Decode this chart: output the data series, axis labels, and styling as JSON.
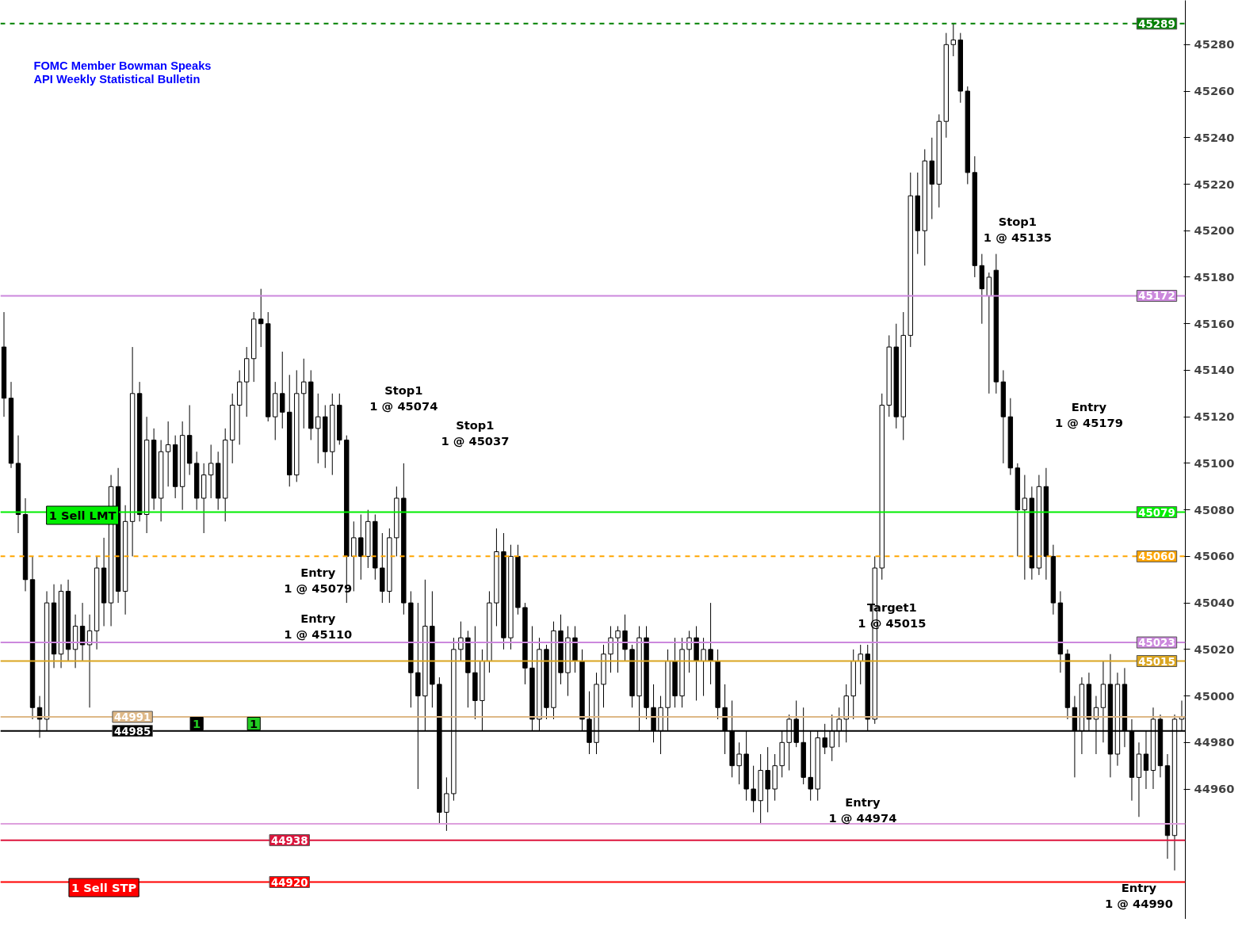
{
  "chart_data": {
    "type": "candlestick",
    "categories": [
      null,
      null,
      null,
      null,
      null,
      null,
      null,
      null,
      null,
      null,
      null,
      null,
      null,
      null,
      null,
      null,
      null,
      null,
      null,
      null,
      null,
      null,
      null,
      null,
      null,
      null,
      null,
      null,
      null,
      null,
      null,
      null,
      null,
      null,
      null,
      null,
      null,
      null,
      null,
      null,
      null,
      null,
      null,
      null,
      null,
      null,
      null,
      null,
      null,
      null,
      null,
      null,
      null,
      null,
      null,
      null,
      null,
      null,
      null,
      null,
      null,
      null,
      null,
      null,
      null,
      null,
      null,
      null,
      null,
      null,
      null,
      null,
      null,
      null,
      null,
      null,
      null,
      null,
      null,
      null,
      null,
      null,
      null,
      null,
      null,
      null,
      null,
      null,
      null,
      null,
      null,
      null,
      null,
      null,
      null,
      null,
      null,
      null,
      null,
      null,
      null,
      null,
      null,
      null,
      null,
      null,
      null,
      null,
      null,
      null,
      null,
      null,
      null,
      null,
      null,
      null,
      null,
      null,
      null,
      null,
      null,
      null,
      null,
      null,
      null,
      null,
      null,
      null,
      null,
      null,
      null,
      null,
      null,
      null,
      null,
      null,
      null,
      null,
      null,
      null,
      null,
      null,
      null,
      null,
      null,
      null,
      null,
      null,
      null,
      null,
      null,
      null,
      null,
      null,
      null,
      null,
      null,
      null,
      null,
      null,
      null,
      null,
      null,
      null,
      null,
      null
    ],
    "ohlc": [
      [
        45150,
        45165,
        45120,
        45128
      ],
      [
        45128,
        45135,
        45098,
        45100
      ],
      [
        45100,
        45112,
        45070,
        45078
      ],
      [
        45078,
        45085,
        45045,
        45050
      ],
      [
        45050,
        45060,
        44990,
        44995
      ],
      [
        44995,
        45000,
        44982,
        44990
      ],
      [
        44990,
        45045,
        44985,
        45040
      ],
      [
        45040,
        45048,
        45012,
        45018
      ],
      [
        45018,
        45048,
        45012,
        45045
      ],
      [
        45045,
        45050,
        45015,
        45020
      ],
      [
        45020,
        45035,
        45012,
        45030
      ],
      [
        45030,
        45040,
        45015,
        45022
      ],
      [
        45022,
        45035,
        44995,
        45028
      ],
      [
        45028,
        45060,
        45020,
        45055
      ],
      [
        45055,
        45068,
        45030,
        45040
      ],
      [
        45040,
        45095,
        45030,
        45090
      ],
      [
        45090,
        45098,
        45040,
        45045
      ],
      [
        45045,
        45082,
        45035,
        45075
      ],
      [
        45075,
        45150,
        45060,
        45130
      ],
      [
        45130,
        45135,
        45075,
        45078
      ],
      [
        45078,
        45120,
        45070,
        45110
      ],
      [
        45110,
        45115,
        45080,
        45085
      ],
      [
        45085,
        45110,
        45075,
        45105
      ],
      [
        45105,
        45118,
        45090,
        45108
      ],
      [
        45108,
        45112,
        45085,
        45090
      ],
      [
        45090,
        45118,
        45080,
        45112
      ],
      [
        45112,
        45125,
        45095,
        45100
      ],
      [
        45100,
        45105,
        45080,
        45085
      ],
      [
        45085,
        45100,
        45070,
        45095
      ],
      [
        45095,
        45108,
        45085,
        45100
      ],
      [
        45100,
        45105,
        45080,
        45085
      ],
      [
        45085,
        45115,
        45075,
        45110
      ],
      [
        45110,
        45130,
        45100,
        45125
      ],
      [
        45125,
        45140,
        45108,
        45135
      ],
      [
        45135,
        45150,
        45120,
        45145
      ],
      [
        45145,
        45165,
        45135,
        45162
      ],
      [
        45162,
        45175,
        45150,
        45160
      ],
      [
        45160,
        45165,
        45118,
        45120
      ],
      [
        45120,
        45135,
        45110,
        45130
      ],
      [
        45130,
        45148,
        45115,
        45122
      ],
      [
        45122,
        45138,
        45090,
        45095
      ],
      [
        45095,
        45140,
        45092,
        45130
      ],
      [
        45130,
        45145,
        45115,
        45135
      ],
      [
        45135,
        45140,
        45110,
        45115
      ],
      [
        45115,
        45130,
        45100,
        45120
      ],
      [
        45120,
        45125,
        45098,
        45105
      ],
      [
        45105,
        45130,
        45095,
        45125
      ],
      [
        45125,
        45130,
        45108,
        45110
      ],
      [
        45110,
        45112,
        45040,
        45060
      ],
      [
        45060,
        45075,
        45045,
        45068
      ],
      [
        45068,
        45078,
        45050,
        45060
      ],
      [
        45060,
        45080,
        45055,
        45075
      ],
      [
        45075,
        45078,
        45050,
        45055
      ],
      [
        45055,
        45070,
        45040,
        45045
      ],
      [
        45045,
        45072,
        45040,
        45068
      ],
      [
        45068,
        45090,
        45060,
        45085
      ],
      [
        45085,
        45100,
        45035,
        45040
      ],
      [
        45040,
        45045,
        44995,
        45010
      ],
      [
        45010,
        45040,
        44960,
        45000
      ],
      [
        45000,
        45050,
        44985,
        45030
      ],
      [
        45030,
        45045,
        44995,
        45005
      ],
      [
        45005,
        45008,
        44945,
        44950
      ],
      [
        44950,
        44965,
        44942,
        44958
      ],
      [
        44958,
        45025,
        44955,
        45020
      ],
      [
        45020,
        45032,
        45015,
        45025
      ],
      [
        45025,
        45028,
        44995,
        45010
      ],
      [
        45010,
        45030,
        44990,
        44998
      ],
      [
        44998,
        45020,
        44985,
        45015
      ],
      [
        45015,
        45045,
        45010,
        45040
      ],
      [
        45040,
        45072,
        45030,
        45062
      ],
      [
        45062,
        45070,
        45020,
        45025
      ],
      [
        45025,
        45065,
        45020,
        45060
      ],
      [
        45060,
        45065,
        45035,
        45038
      ],
      [
        45038,
        45040,
        45005,
        45012
      ],
      [
        45012,
        45030,
        44985,
        44990
      ],
      [
        44990,
        45025,
        44985,
        45020
      ],
      [
        45020,
        45022,
        44990,
        44995
      ],
      [
        44995,
        45032,
        44990,
        45028
      ],
      [
        45028,
        45035,
        45005,
        45010
      ],
      [
        45010,
        45030,
        45000,
        45025
      ],
      [
        45025,
        45030,
        45010,
        45015
      ],
      [
        45015,
        45020,
        44985,
        44990
      ],
      [
        44990,
        45002,
        44975,
        44980
      ],
      [
        44980,
        45010,
        44975,
        45005
      ],
      [
        45005,
        45022,
        44995,
        45018
      ],
      [
        45018,
        45030,
        45010,
        45025
      ],
      [
        45025,
        45030,
        45010,
        45028
      ],
      [
        45028,
        45035,
        45015,
        45020
      ],
      [
        45020,
        45022,
        44995,
        45000
      ],
      [
        45000,
        45030,
        44985,
        45025
      ],
      [
        45025,
        45030,
        44990,
        44995
      ],
      [
        44995,
        45005,
        44980,
        44985
      ],
      [
        44985,
        45000,
        44975,
        44995
      ],
      [
        44995,
        45020,
        44985,
        45015
      ],
      [
        45015,
        45025,
        44995,
        45000
      ],
      [
        45000,
        45025,
        44995,
        45020
      ],
      [
        45020,
        45028,
        45010,
        45025
      ],
      [
        45025,
        45030,
        44998,
        45015
      ],
      [
        45015,
        45025,
        45000,
        45020
      ],
      [
        45020,
        45040,
        45005,
        45015
      ],
      [
        45015,
        45020,
        44990,
        44995
      ],
      [
        44995,
        45005,
        44975,
        44985
      ],
      [
        44985,
        44998,
        44965,
        44970
      ],
      [
        44970,
        44980,
        44962,
        44975
      ],
      [
        44975,
        44985,
        44955,
        44960
      ],
      [
        44960,
        44970,
        44950,
        44955
      ],
      [
        44955,
        44975,
        44945,
        44968
      ],
      [
        44968,
        44978,
        44950,
        44960
      ],
      [
        44960,
        44975,
        44955,
        44970
      ],
      [
        44970,
        44985,
        44965,
        44980
      ],
      [
        44980,
        44992,
        44968,
        44990
      ],
      [
        44990,
        44998,
        44978,
        44980
      ],
      [
        44980,
        44995,
        44962,
        44965
      ],
      [
        44965,
        44985,
        44955,
        44960
      ],
      [
        44960,
        44985,
        44955,
        44982
      ],
      [
        44982,
        44988,
        44975,
        44978
      ],
      [
        44978,
        44992,
        44972,
        44985
      ],
      [
        44985,
        44995,
        44978,
        44990
      ],
      [
        44990,
        45005,
        44980,
        45000
      ],
      [
        45000,
        45020,
        44990,
        45015
      ],
      [
        45015,
        45022,
        45005,
        45018
      ],
      [
        45018,
        45022,
        44985,
        44990
      ],
      [
        44990,
        45060,
        44988,
        45055
      ],
      [
        45055,
        45130,
        45050,
        45125
      ],
      [
        45125,
        45155,
        45120,
        45150
      ],
      [
        45150,
        45160,
        45115,
        45120
      ],
      [
        45120,
        45165,
        45110,
        45155
      ],
      [
        45155,
        45225,
        45150,
        45215
      ],
      [
        45215,
        45225,
        45190,
        45200
      ],
      [
        45200,
        45235,
        45185,
        45230
      ],
      [
        45230,
        45240,
        45205,
        45220
      ],
      [
        45220,
        45250,
        45210,
        45247
      ],
      [
        45247,
        45285,
        45240,
        45280
      ],
      [
        45280,
        45289,
        45275,
        45282
      ],
      [
        45282,
        45285,
        45255,
        45260
      ],
      [
        45260,
        45262,
        45220,
        45225
      ],
      [
        45225,
        45232,
        45180,
        45185
      ],
      [
        45185,
        45190,
        45160,
        45175
      ],
      [
        45172,
        45182,
        45130,
        45180
      ],
      [
        45183,
        45190,
        45130,
        45135
      ],
      [
        45135,
        45140,
        45100,
        45120
      ],
      [
        45120,
        45128,
        45095,
        45098
      ],
      [
        45098,
        45100,
        45060,
        45080
      ],
      [
        45080,
        45095,
        45050,
        45085
      ],
      [
        45085,
        45090,
        45050,
        45055
      ],
      [
        45055,
        45095,
        45052,
        45090
      ],
      [
        45090,
        45098,
        45050,
        45060
      ],
      [
        45060,
        45065,
        45035,
        45040
      ],
      [
        45040,
        45045,
        45010,
        45018
      ],
      [
        45018,
        45020,
        44990,
        44995
      ],
      [
        44995,
        45000,
        44965,
        44985
      ],
      [
        44985,
        45008,
        44975,
        45005
      ],
      [
        45005,
        45010,
        44985,
        44990
      ],
      [
        44990,
        45000,
        44975,
        44995
      ],
      [
        44995,
        45015,
        44980,
        45005
      ],
      [
        45005,
        45018,
        44965,
        44975
      ],
      [
        44975,
        45010,
        44970,
        45005
      ],
      [
        45005,
        45012,
        44978,
        44985
      ],
      [
        44985,
        44990,
        44955,
        44965
      ],
      [
        44965,
        44980,
        44948,
        44975
      ],
      [
        44975,
        44985,
        44960,
        44968
      ],
      [
        44968,
        44995,
        44960,
        44990
      ],
      [
        44990,
        44992,
        44965,
        44970
      ],
      [
        44970,
        44975,
        44930,
        44940
      ],
      [
        44940,
        44992,
        44925,
        44990
      ],
      [
        44990,
        44998,
        44985,
        44991
      ]
    ],
    "ylim": [
      44904,
      45299
    ],
    "yticks": [
      44960,
      44980,
      45000,
      45020,
      45040,
      45060,
      45080,
      45100,
      45120,
      45140,
      45160,
      45180,
      45200,
      45220,
      45240,
      45260,
      45280
    ],
    "tick_labels": "y",
    "grid": false,
    "ref_lines": [
      {
        "axis": "y",
        "value": 45289,
        "label": "45289",
        "color": "#008000",
        "line_style": "dashed"
      },
      {
        "axis": "y",
        "value": 45172,
        "label": "45172",
        "color": "#cc88dd"
      },
      {
        "axis": "y",
        "value": 45079,
        "label": "45079",
        "color": "#00ee00"
      },
      {
        "axis": "y",
        "value": 45060,
        "label": "45060",
        "color": "#ffa500",
        "line_style": "dashed"
      },
      {
        "axis": "y",
        "value": 45023,
        "label": "45023",
        "color": "#cc88dd"
      },
      {
        "axis": "y",
        "value": 45015,
        "label": "45015",
        "color": "#daa520"
      },
      {
        "axis": "y",
        "value": 44991,
        "label": "44991",
        "color": "#deb887"
      },
      {
        "axis": "y",
        "value": 44985,
        "label": "44985",
        "color": "#000000"
      },
      {
        "axis": "y",
        "value": 44945,
        "color": "#dda0dd"
      },
      {
        "axis": "y",
        "value": 44938,
        "label": "44938",
        "color": "#dc143c"
      },
      {
        "axis": "y",
        "value": 44920,
        "label": "44920",
        "color": "#ff0000"
      }
    ],
    "annotations": [
      "FOMC Member Bowman Speaks",
      "API Weekly Statistical Bulletin",
      "Stop1\n1 @ 45074",
      "Stop1\n1 @ 45037",
      "Entry\n1 @ 45079",
      "Entry\n1 @ 45110",
      "Target1\n1 @ 45015",
      "Entry\n1 @ 44974",
      "Stop1\n1 @ 45135",
      "Entry\n1 @ 45179",
      "Entry\n1 @ 44990",
      "1 Sell LMT",
      "1 Sell STP",
      "1",
      "1"
    ]
  }
}
